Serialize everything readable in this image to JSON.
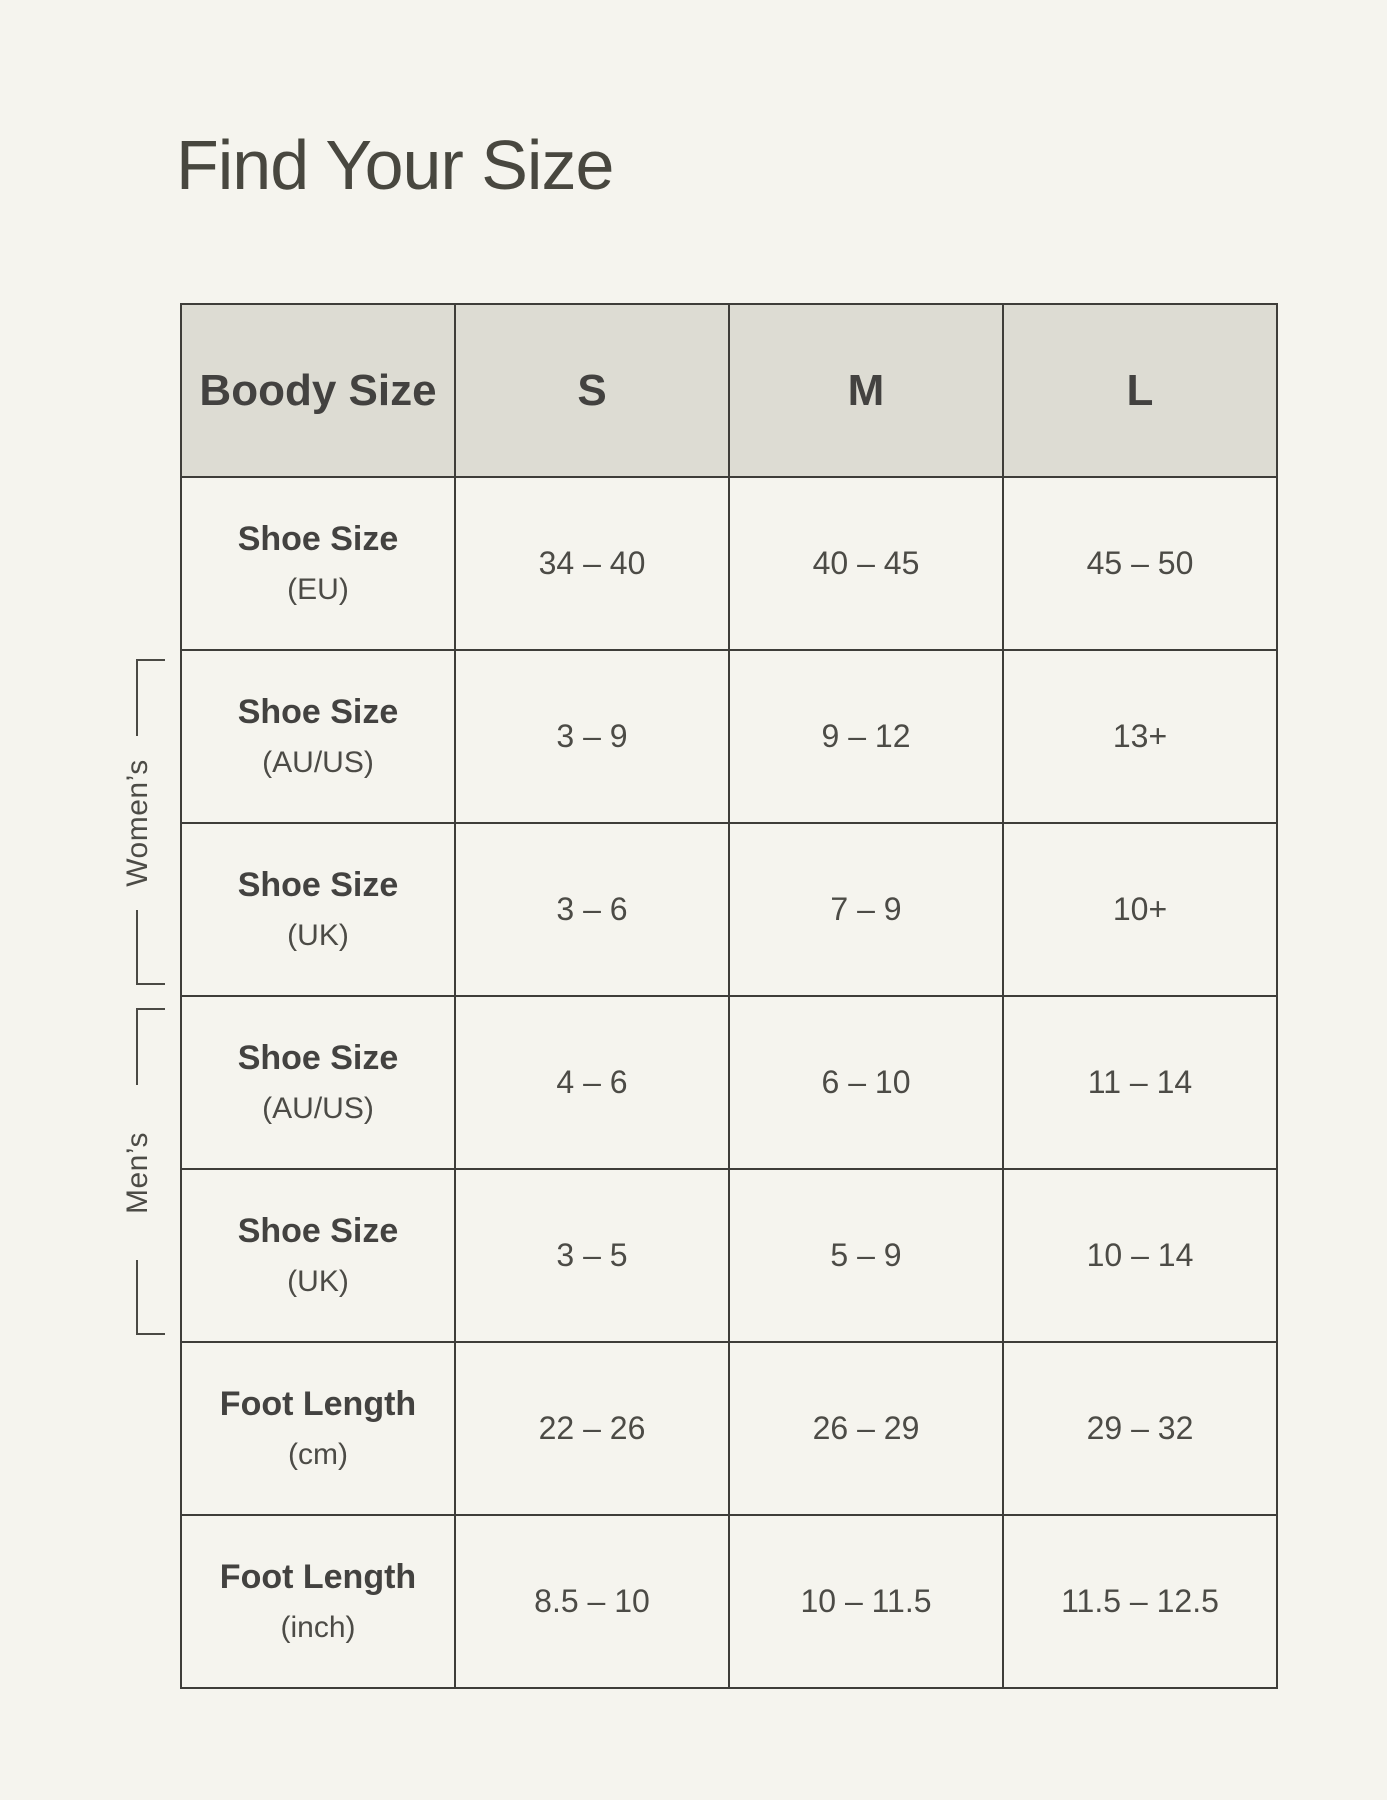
{
  "chart_data": {
    "type": "table",
    "title": "Find Your Size",
    "columns": [
      "Boody Size",
      "S",
      "M",
      "L"
    ],
    "header": {
      "label": "Boody Size",
      "s": "S",
      "m": "M",
      "l": "L"
    },
    "groups": {
      "womens": "Women’s",
      "mens": "Men’s"
    },
    "rows": [
      {
        "label": "Shoe Size",
        "unit": "(EU)",
        "group": "",
        "values": {
          "s": "34 – 40",
          "m": "40 – 45",
          "l": "45 – 50"
        }
      },
      {
        "label": "Shoe Size",
        "unit": "(AU/US)",
        "group": "Women’s",
        "values": {
          "s": "3 – 9",
          "m": "9 – 12",
          "l": "13+"
        }
      },
      {
        "label": "Shoe Size",
        "unit": "(UK)",
        "group": "Women’s",
        "values": {
          "s": "3 – 6",
          "m": "7 – 9",
          "l": "10+"
        }
      },
      {
        "label": "Shoe Size",
        "unit": "(AU/US)",
        "group": "Men’s",
        "values": {
          "s": "4 – 6",
          "m": "6 – 10",
          "l": "11 – 14"
        }
      },
      {
        "label": "Shoe Size",
        "unit": "(UK)",
        "group": "Men’s",
        "values": {
          "s": "3 – 5",
          "m": "5 – 9",
          "l": "10 – 14"
        }
      },
      {
        "label": "Foot Length",
        "unit": "(cm)",
        "group": "",
        "values": {
          "s": "22 – 26",
          "m": "26 – 29",
          "l": "29 – 32"
        }
      },
      {
        "label": "Foot Length",
        "unit": "(inch)",
        "group": "",
        "values": {
          "s": "8.5 – 10",
          "m": "10 – 11.5",
          "l": "11.5 – 12.5"
        }
      }
    ],
    "layout": {
      "grid": "on",
      "header_fill": true
    },
    "colors": {
      "page_background": "#f5f4ee",
      "header_background": "#dddcd3",
      "table_border": "#3e3d39",
      "heading_text": "#434240",
      "body_text": "#4c4b46",
      "title_text": "#48473f"
    }
  }
}
